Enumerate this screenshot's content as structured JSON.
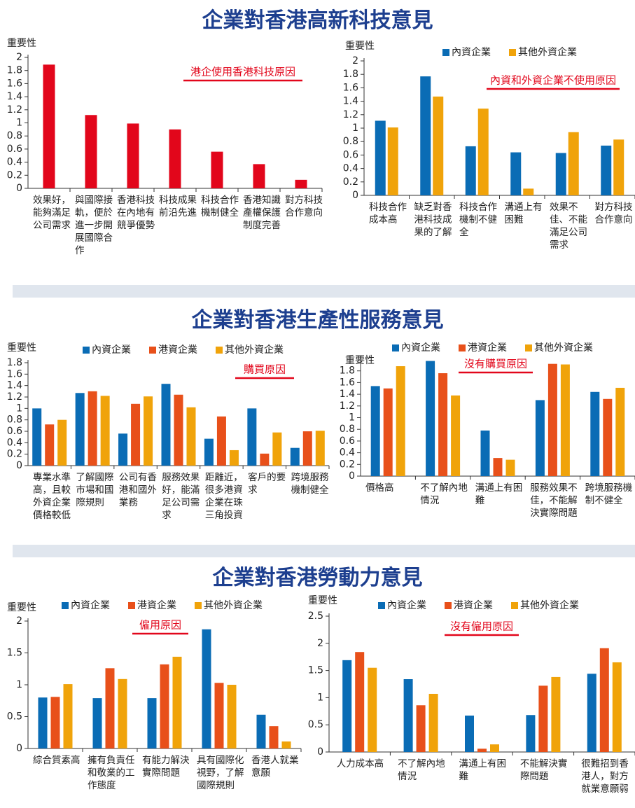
{
  "sections": [
    {
      "title": "企業對香港高新科技意見"
    },
    {
      "title": "企業對香港生產性服務意見"
    },
    {
      "title": "企業對香港勞動力意見"
    }
  ],
  "chart_data": [
    {
      "type": "bar",
      "y_label": "重要性",
      "annotation": "港企使用香港科技原因",
      "categories": [
        "效果好，能夠滿足公司需求",
        "與國際接軌，便於進一步開展國際合作",
        "香港科技在內地有競爭優勢",
        "科技成果前沿先進",
        "科技合作機制健全",
        "香港知識產權保護制度完善",
        "對方科技合作意向"
      ],
      "series": [
        {
          "color": "#e2061b",
          "values": [
            1.89,
            1.12,
            0.99,
            0.9,
            0.56,
            0.37,
            0.13
          ]
        }
      ],
      "ylim": [
        0,
        2
      ],
      "yticks": [
        0,
        0.2,
        0.4,
        0.6,
        0.8,
        1,
        1.2,
        1.4,
        1.6,
        1.8,
        2
      ]
    },
    {
      "type": "bar",
      "y_label": "重要性",
      "annotation": "內資和外資企業不使用原因",
      "categories": [
        "科技合作成本高",
        "缺乏對香港科技成果的了解",
        "科技合作機制不健全",
        "溝通上有困難",
        "效果不佳、不能滿足公司需求",
        "對方科技合作意向"
      ],
      "series": [
        {
          "name": "內資企業",
          "color": "#0a6cb5",
          "values": [
            1.11,
            1.77,
            0.73,
            0.64,
            0.63,
            0.74
          ]
        },
        {
          "name": "其他外資企業",
          "color": "#f0a30a",
          "values": [
            1.01,
            1.47,
            1.29,
            0.1,
            0.94,
            0.83
          ]
        }
      ],
      "ylim": [
        0,
        2
      ],
      "yticks": [
        0,
        0.2,
        0.4,
        0.6,
        0.8,
        1,
        1.2,
        1.4,
        1.6,
        1.8,
        2
      ]
    },
    {
      "type": "bar",
      "y_label": "重要性",
      "annotation": "購買原因",
      "categories": [
        "專業水準高，且較外資企業價格較低",
        "了解國際市場和國際規則",
        "公司有香港和國外業務",
        "服務效果好，能滿足公司需求",
        "距離近，很多港資企業在珠三角投資",
        "客戶的要求",
        "跨境服務機制健全"
      ],
      "series": [
        {
          "name": "內資企業",
          "color": "#0a6cb5",
          "values": [
            1.0,
            1.27,
            0.56,
            1.43,
            0.47,
            1.0,
            0.31
          ]
        },
        {
          "name": "港資企業",
          "color": "#e8501a",
          "values": [
            0.72,
            1.3,
            1.08,
            1.24,
            0.86,
            0.21,
            0.6
          ]
        },
        {
          "name": "其他外資企業",
          "color": "#f0a30a",
          "values": [
            0.8,
            1.22,
            1.21,
            1.02,
            0.27,
            0.58,
            0.61
          ]
        }
      ],
      "ylim": [
        0,
        1.8
      ],
      "yticks": [
        0,
        0.2,
        0.4,
        0.6,
        0.8,
        1,
        1.2,
        1.4,
        1.6,
        1.8
      ]
    },
    {
      "type": "bar",
      "y_label": "重要性",
      "annotation": "沒有購買原因",
      "categories": [
        "價格高",
        "不了解內地情況",
        "溝通上有困難",
        "服務效果不佳，不能解決實際問題",
        "跨境服務機制不健全"
      ],
      "series": [
        {
          "name": "內資企業",
          "color": "#0a6cb5",
          "values": [
            1.54,
            1.97,
            0.78,
            1.3,
            1.44
          ]
        },
        {
          "name": "港資企業",
          "color": "#e8501a",
          "values": [
            1.5,
            1.76,
            0.31,
            1.92,
            1.32
          ]
        },
        {
          "name": "其他外資企業",
          "color": "#f0a30a",
          "values": [
            1.88,
            1.38,
            0.28,
            1.91,
            1.51
          ]
        }
      ],
      "ylim": [
        0,
        2
      ],
      "yticks": [
        0,
        0.2,
        0.4,
        0.6,
        0.8,
        1,
        1.2,
        1.4,
        1.6,
        1.8
      ]
    },
    {
      "type": "bar",
      "y_label": "重要性",
      "annotation": "僱用原因",
      "categories": [
        "綜合質素高",
        "擁有負責任和敬業的工作態度",
        "有能力解決實際問題",
        "具有國際化視野，了解國際規則",
        "香港人就業意願"
      ],
      "series": [
        {
          "name": "內資企業",
          "color": "#0a6cb5",
          "values": [
            0.8,
            0.79,
            0.79,
            1.87,
            0.53
          ]
        },
        {
          "name": "港資企業",
          "color": "#e8501a",
          "values": [
            0.81,
            1.26,
            1.32,
            1.03,
            0.35
          ]
        },
        {
          "name": "其他外資企業",
          "color": "#f0a30a",
          "values": [
            1.01,
            1.09,
            1.44,
            1.0,
            0.11
          ]
        }
      ],
      "ylim": [
        0,
        2
      ],
      "yticks": [
        0,
        0.5,
        1,
        1.5,
        2
      ]
    },
    {
      "type": "bar",
      "y_label": "重要性",
      "annotation": "沒有僱用原因",
      "categories": [
        "人力成本高",
        "不了解內地情況",
        "溝通上有困難",
        "不能解決實際問題",
        "很難招到香港人，對方就業意願弱"
      ],
      "series": [
        {
          "name": "內資企業",
          "color": "#0a6cb5",
          "values": [
            1.69,
            1.34,
            0.67,
            0.68,
            1.44
          ]
        },
        {
          "name": "港資企業",
          "color": "#e8501a",
          "values": [
            1.84,
            0.86,
            0.06,
            1.22,
            1.91
          ]
        },
        {
          "name": "其他外資企業",
          "color": "#f0a30a",
          "values": [
            1.55,
            1.07,
            0.14,
            1.38,
            1.65
          ]
        }
      ],
      "ylim": [
        0,
        2.5
      ],
      "yticks": [
        0,
        0.5,
        1,
        1.5,
        2,
        2.5
      ]
    }
  ]
}
